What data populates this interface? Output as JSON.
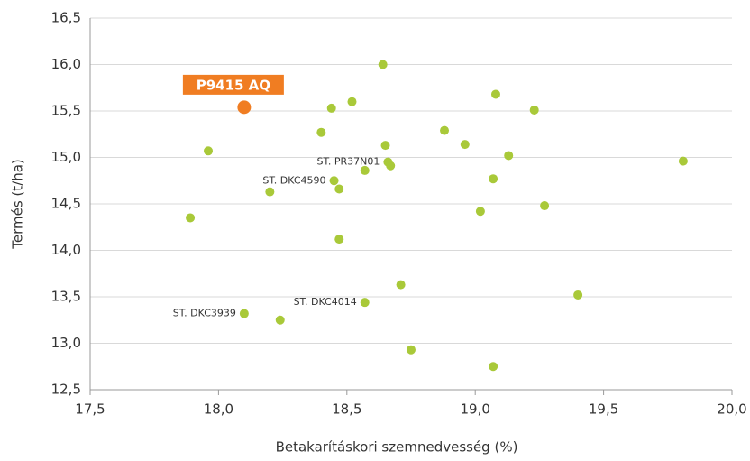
{
  "chart_data": {
    "type": "scatter",
    "xlabel": "Betakarításkori szemnedvesség (%)",
    "ylabel": "Termés (t/ha)",
    "xlim": [
      17.5,
      20.0
    ],
    "xticks": [
      {
        "value": 17.5,
        "label": "17,5"
      },
      {
        "value": 18.0,
        "label": "18,0"
      },
      {
        "value": 18.5,
        "label": "18,5"
      },
      {
        "value": 19.0,
        "label": "19,0"
      },
      {
        "value": 19.5,
        "label": "19,5"
      },
      {
        "value": 20.0,
        "label": "20,0"
      }
    ],
    "ylim": [
      12.5,
      16.5
    ],
    "yticks": [
      {
        "value": 12.5,
        "label": "12,5"
      },
      {
        "value": 13.0,
        "label": "13,0"
      },
      {
        "value": 13.5,
        "label": "13,5"
      },
      {
        "value": 14.0,
        "label": "14,0"
      },
      {
        "value": 14.5,
        "label": "14,5"
      },
      {
        "value": 15.0,
        "label": "15,0"
      },
      {
        "value": 15.5,
        "label": "15,5"
      },
      {
        "value": 16.0,
        "label": "16,0"
      },
      {
        "value": 16.5,
        "label": "16,5"
      }
    ],
    "grid": true,
    "series": [
      {
        "color": "#a9c939",
        "x": [
          18.64,
          19.08,
          18.52,
          18.44,
          19.23,
          18.4,
          18.88,
          18.65,
          18.96,
          17.96,
          19.13,
          18.66,
          18.67,
          19.81,
          18.57,
          18.45,
          18.47,
          18.2,
          19.07,
          19.27,
          19.02,
          17.89,
          18.47,
          18.71,
          19.4,
          18.57,
          18.1,
          18.24,
          18.75,
          19.07
        ],
        "values": [
          16.0,
          15.68,
          15.6,
          15.53,
          15.51,
          15.27,
          15.29,
          15.13,
          15.14,
          15.07,
          15.02,
          14.95,
          14.91,
          14.96,
          14.86,
          14.75,
          14.66,
          14.63,
          14.77,
          14.48,
          14.42,
          14.35,
          14.12,
          13.63,
          13.52,
          13.44,
          13.32,
          13.25,
          12.93,
          12.75
        ],
        "labels": [
          null,
          null,
          null,
          null,
          null,
          null,
          null,
          null,
          null,
          null,
          null,
          "ST. PR37N01",
          null,
          null,
          null,
          "ST. DKC4590",
          null,
          null,
          null,
          null,
          null,
          null,
          null,
          null,
          null,
          "ST. DKC4014",
          "ST. DKC3939",
          null,
          null,
          null
        ]
      },
      {
        "name": "P9415 AQ",
        "color": "#f07d22",
        "x": [
          18.1
        ],
        "values": [
          15.54
        ]
      }
    ]
  }
}
